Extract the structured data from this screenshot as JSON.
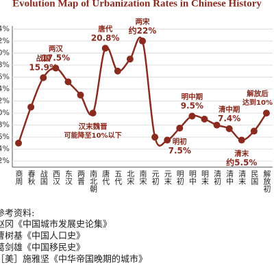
{
  "chart_data": {
    "type": "line",
    "title": "Evolution Map of Urbanization Rates in Chinese History",
    "categories": [
      "商周",
      "春秋",
      "战国",
      "西汉",
      "东汉",
      "两晋",
      "南北朝",
      "唐代",
      "五代",
      "北宋",
      "南宋",
      "元初",
      "元末",
      "明初",
      "明中",
      "明末",
      "清初",
      "清中",
      "清末",
      "民国",
      "解放初"
    ],
    "series": [
      {
        "color": "#8b2a1f",
        "values": [
          5,
          11,
          15.9,
          17.5,
          15.2,
          13,
          10,
          20.8,
          17,
          19,
          22,
          6,
          5.5,
          7.5,
          9.5,
          9,
          8,
          7.4,
          5.5,
          7,
          10
        ],
        "value_labels": [
          null,
          null,
          "战国\n15.9%",
          "两汉\n17.5%",
          null,
          null,
          "汉末魏晋\n可能降至10%以下",
          "唐代\n20.8%",
          null,
          null,
          "两宋\n约22%",
          null,
          null,
          "明初\n7.5%",
          "明中期\n9.5%",
          null,
          null,
          "清中期\n7.4%",
          "清末\n约5.5%",
          null,
          "解放后\n达到10%"
        ]
      }
    ],
    "ylim": [
      1,
      24.5
    ],
    "yticks": [
      {
        "value": 2,
        "label": "2%"
      },
      {
        "value": 4,
        "label": "4%"
      },
      {
        "value": 6,
        "label": "6%"
      },
      {
        "value": 8,
        "label": "8%"
      },
      {
        "value": 10,
        "label": "10%"
      },
      {
        "value": 12,
        "label": "12%"
      },
      {
        "value": 14,
        "label": "14%"
      },
      {
        "value": 16,
        "label": "16%"
      },
      {
        "value": 18,
        "label": "18%"
      },
      {
        "value": 20,
        "label": "20%"
      },
      {
        "value": 22,
        "label": "22%"
      },
      {
        "value": 24,
        "label": "24%"
      }
    ],
    "grid": true
  },
  "references": {
    "heading": "参考资料:",
    "items": [
      "赵冈《中国城市发展史论集》",
      "曹树基《中国人口史》",
      "葛剑雄《中国移民史》",
      "［美］施雅坚《中华帝国晚期的城市》"
    ]
  }
}
